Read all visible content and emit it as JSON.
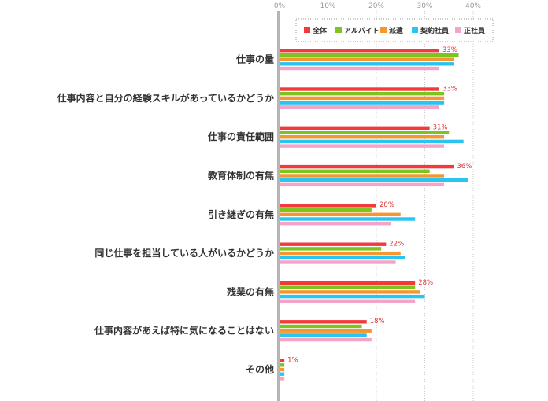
{
  "chart_data": {
    "type": "bar",
    "orientation": "horizontal",
    "categories": [
      "仕事の量",
      "仕事内容と自分の経験スキルがあっているかどうか",
      "仕事の責任範囲",
      "教育体制の有無",
      "引き継ぎの有無",
      "同じ仕事を担当している人がいるかどうか",
      "残業の有無",
      "仕事内容があえば特に気になることはない",
      "その他"
    ],
    "series": [
      {
        "name": "全体",
        "color": "#f23a3a",
        "values": [
          33,
          33,
          31,
          36,
          20,
          22,
          28,
          18,
          1
        ]
      },
      {
        "name": "アルバイト",
        "color": "#7cc41f",
        "values": [
          37,
          34,
          35,
          31,
          19,
          21,
          28,
          17,
          1
        ]
      },
      {
        "name": "派遣",
        "color": "#f5962e",
        "values": [
          36,
          34,
          34,
          34,
          25,
          25,
          29,
          19,
          1
        ]
      },
      {
        "name": "契約社員",
        "color": "#29c4f0",
        "values": [
          36,
          34,
          38,
          39,
          28,
          26,
          30,
          18,
          1
        ]
      },
      {
        "name": "正社員",
        "color": "#f5a3c8",
        "values": [
          33,
          33,
          34,
          34,
          23,
          24,
          28,
          19,
          1
        ]
      }
    ],
    "value_labels": [
      "33%",
      "33%",
      "31%",
      "36%",
      "20%",
      "22%",
      "28%",
      "18%",
      "1%"
    ],
    "x_ticks": [
      "0%",
      "10%",
      "20%",
      "30%",
      "40%"
    ],
    "xlim": [
      0,
      40
    ],
    "grid": true,
    "legend_position": "top-right"
  }
}
